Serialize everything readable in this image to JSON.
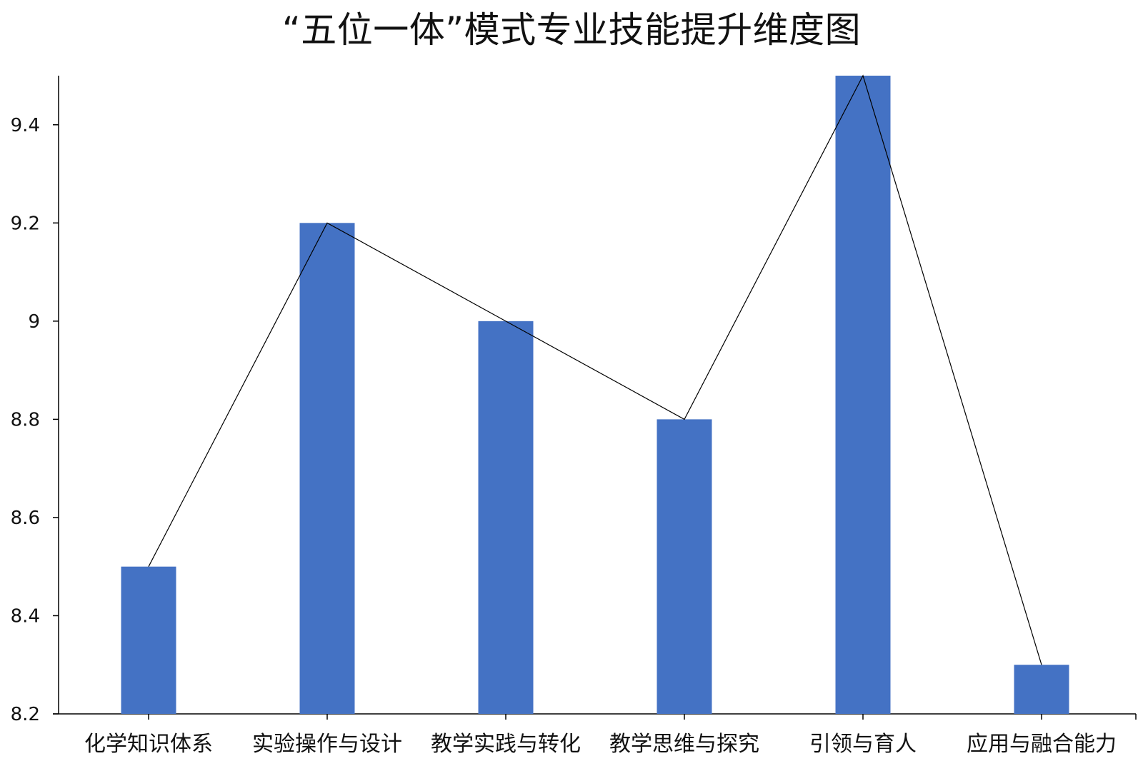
{
  "chart_data": {
    "type": "bar",
    "title": "“五位一体”模式专业技能提升维度图",
    "categories": [
      "化学知识体系",
      "实验操作与设计",
      "教学实践与转化",
      "教学思维与探究",
      "引领与育人",
      "应用与融合能力"
    ],
    "series": [
      {
        "values": [
          8.5,
          9.2,
          9.0,
          8.8,
          9.5,
          8.3
        ],
        "color": "#4472C4"
      }
    ],
    "overlay_line": {
      "values": [
        8.5,
        9.2,
        9.0,
        8.8,
        9.5,
        8.3
      ],
      "color": "#000000"
    },
    "ylim": [
      8.2,
      9.5
    ],
    "yticks": [
      8.2,
      8.4,
      8.6,
      8.8,
      9.0,
      9.2,
      9.4
    ],
    "ytick_labels": [
      "8.2",
      "8.4",
      "8.6",
      "8.8",
      "9",
      "9.2",
      "9.4"
    ],
    "grid": false,
    "legend": "none"
  }
}
